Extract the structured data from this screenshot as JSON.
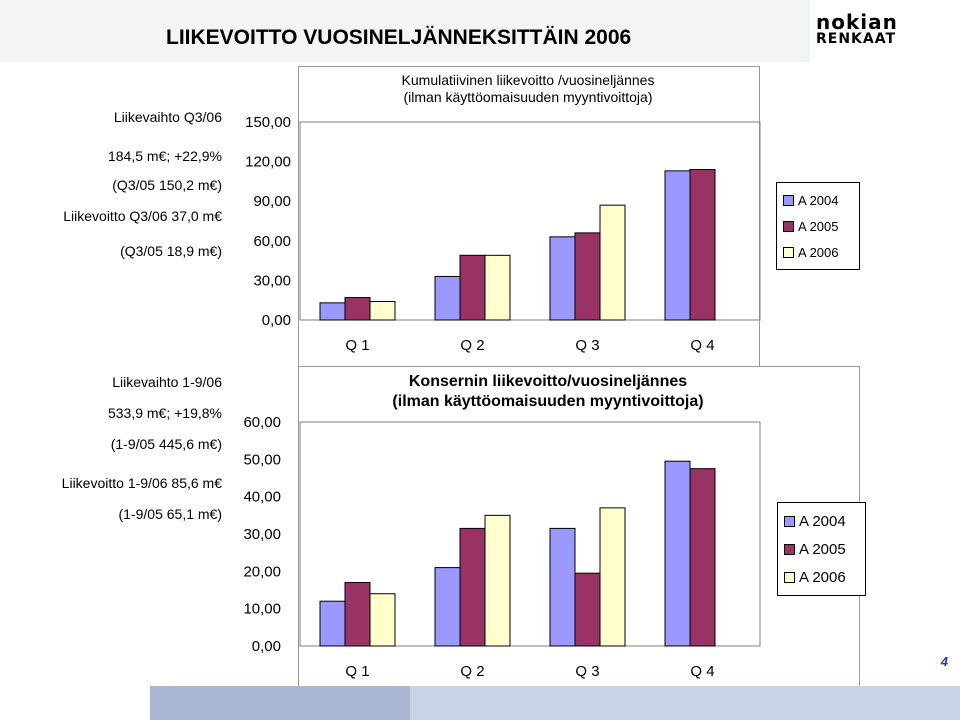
{
  "header": {
    "title": "LIIKEVOITTO VUOSINELJÄNNEKSITTÄIN 2006",
    "logo_line1": "nokian",
    "logo_line2": "RENKAAT"
  },
  "side_top": {
    "line1": "Liikevaihto Q3/06",
    "line2": "184,5 m€; +22,9%",
    "line3": "(Q3/05 150,2 m€)",
    "line4": "Liikevoitto Q3/06 37,0 m€",
    "line5": "(Q3/05 18,9 m€)"
  },
  "side_bottom": {
    "line1": "Liikevaihto 1-9/06",
    "line2": "533,9 m€; +19,8%",
    "line3": "(1-9/05 445,6 m€)",
    "line4": "Liikevoitto 1-9/06 85,6 m€",
    "line5": "(1-9/05 65,1 m€)"
  },
  "page_number": "4",
  "colors": {
    "a2004": "#9999ff",
    "a2005": "#993366",
    "a2006": "#ffffcc",
    "frame": "#9a9a9a",
    "bottom_band": "#c9d3e6"
  },
  "chart_data": [
    {
      "type": "bar",
      "title_line1": "Kumulatiivinen liikevoitto /vuosineljännes",
      "title_line2": "(ilman käyttöomaisuuden myyntivoittoja)",
      "categories": [
        "Q 1",
        "Q 2",
        "Q 3",
        "Q 4"
      ],
      "series": [
        {
          "name": "A 2004",
          "values": [
            13,
            33,
            63,
            113
          ]
        },
        {
          "name": "A 2005",
          "values": [
            17,
            49,
            66,
            114
          ]
        },
        {
          "name": "A 2006",
          "values": [
            14,
            49,
            87,
            null
          ]
        }
      ],
      "ylim": [
        0,
        150
      ],
      "yticks": [
        0,
        30,
        60,
        90,
        120,
        150
      ],
      "ytick_labels": [
        "0,00",
        "30,00",
        "60,00",
        "90,00",
        "120,00",
        "150,00"
      ],
      "legend": "right",
      "grid": false
    },
    {
      "type": "bar",
      "title_line1": "Konsernin liikevoitto/vuosineljännes",
      "title_line2": "(ilman käyttöomaisuuden myyntivoittoja)",
      "categories": [
        "Q 1",
        "Q 2",
        "Q 3",
        "Q 4"
      ],
      "series": [
        {
          "name": "A 2004",
          "values": [
            12,
            21,
            31.5,
            49.5
          ]
        },
        {
          "name": "A 2005",
          "values": [
            17,
            31.5,
            19.5,
            47.5
          ]
        },
        {
          "name": "A 2006",
          "values": [
            14,
            35,
            37,
            null
          ]
        }
      ],
      "ylim": [
        0,
        60
      ],
      "yticks": [
        0,
        10,
        20,
        30,
        40,
        50,
        60
      ],
      "ytick_labels": [
        "0,00",
        "10,00",
        "20,00",
        "30,00",
        "40,00",
        "50,00",
        "60,00"
      ],
      "legend": "right",
      "grid": false
    }
  ]
}
